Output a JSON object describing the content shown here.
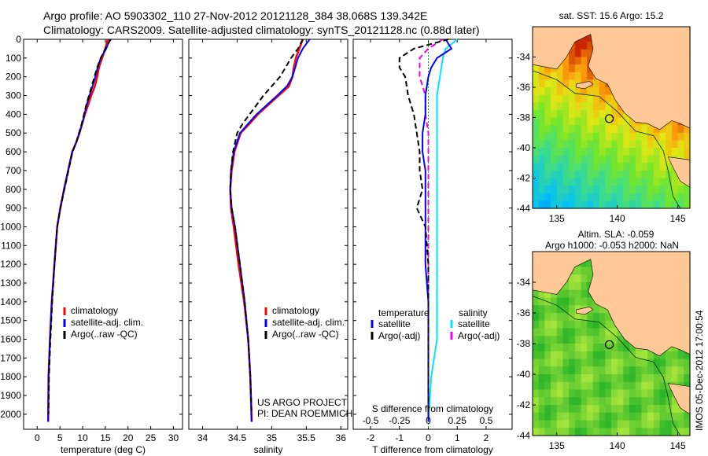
{
  "header": {
    "line1": "Argo profile: AO 5903302_110 27-Nov-2012 20121128_384 38.068S 139.342E",
    "line2": "Climatology: CARS2009. Satellite-adjusted climatology: synTS_20121128.nc (0.88d later)"
  },
  "colors": {
    "climatology": "#ff0000",
    "satellite": "#0000ff",
    "argo": "#000000",
    "sat_salinity": "#00e5ff",
    "argo_salinity": "#ee00ee",
    "land": "#ffc896",
    "sea_sla": "#3ec43e"
  },
  "chart_data": [
    {
      "type": "line",
      "name": "temperature-panel",
      "xlabel": "temperature (deg C)",
      "ylabel": "",
      "xlim": [
        -3,
        32
      ],
      "ylim": [
        2080,
        0
      ],
      "xticks": [
        0,
        5,
        10,
        15,
        20,
        25,
        30
      ],
      "yticks": [
        0,
        100,
        200,
        300,
        400,
        500,
        600,
        700,
        800,
        900,
        1000,
        1100,
        1200,
        1300,
        1400,
        1500,
        1600,
        1700,
        1800,
        1900,
        2000
      ],
      "legend": {
        "position": "lower-center",
        "items": [
          "climatology",
          "satellite-adj. clim.",
          "Argo(..raw -QC)"
        ]
      },
      "series": [
        {
          "name": "climatology",
          "x": [
            15.5,
            15.0,
            14.3,
            13.6,
            13.2,
            12.7,
            11.9,
            11.2,
            10.5,
            9.9,
            9.3,
            8.6,
            7.7,
            6.8,
            5.9,
            5.1,
            4.4,
            3.8,
            3.2,
            2.8,
            2.5,
            2.4
          ],
          "y": [
            0,
            50,
            100,
            150,
            200,
            250,
            300,
            350,
            400,
            450,
            500,
            550,
            600,
            700,
            800,
            900,
            1000,
            1200,
            1400,
            1600,
            1800,
            2040
          ]
        },
        {
          "name": "satellite-adj. clim.",
          "x": [
            16.0,
            15.2,
            14.0,
            13.3,
            12.8,
            12.2,
            11.5,
            10.9,
            10.4,
            9.9,
            9.3,
            8.6,
            7.7,
            6.8,
            5.9,
            5.1,
            4.4,
            3.8,
            3.2,
            2.8,
            2.5,
            2.4
          ],
          "y": [
            0,
            50,
            100,
            150,
            200,
            250,
            300,
            350,
            400,
            450,
            500,
            550,
            600,
            700,
            800,
            900,
            1000,
            1200,
            1400,
            1600,
            1800,
            2040
          ]
        },
        {
          "name": "Argo(..raw -QC)",
          "x": [
            16.2,
            15.0,
            14.0,
            13.2,
            12.6,
            12.0,
            11.4,
            10.8,
            10.3,
            9.8,
            9.2,
            8.6,
            7.8,
            6.9,
            6.0,
            5.1,
            4.4,
            3.8,
            3.3,
            2.9,
            2.6,
            2.5
          ],
          "y": [
            0,
            50,
            100,
            150,
            200,
            250,
            300,
            350,
            400,
            450,
            500,
            550,
            600,
            700,
            800,
            900,
            1000,
            1200,
            1400,
            1600,
            1800,
            2000
          ]
        }
      ]
    },
    {
      "type": "line",
      "name": "salinity-panel",
      "xlabel": "salinity",
      "xlim": [
        33.8,
        36.1
      ],
      "ylim": [
        2080,
        0
      ],
      "xticks": [
        34,
        34.5,
        35,
        35.5,
        36
      ],
      "legend": {
        "position": "lower-center",
        "items": [
          "climatology",
          "satellite-adj. clim.",
          "Argo(..raw -QC)"
        ]
      },
      "annotation": [
        "US ARGO PROJECT",
        "PI: DEAN ROEMMICH"
      ],
      "series": [
        {
          "name": "climatology",
          "x": [
            35.45,
            35.4,
            35.35,
            35.32,
            35.3,
            35.25,
            35.1,
            34.95,
            34.8,
            34.68,
            34.55,
            34.46,
            34.42,
            34.4,
            34.41,
            34.45,
            34.52,
            34.6,
            34.66,
            34.69,
            34.71
          ],
          "y": [
            0,
            50,
            100,
            150,
            200,
            250,
            300,
            350,
            400,
            450,
            500,
            600,
            700,
            800,
            900,
            1000,
            1200,
            1400,
            1600,
            1800,
            2040
          ]
        },
        {
          "name": "satellite-adj. clim.",
          "x": [
            35.55,
            35.45,
            35.38,
            35.34,
            35.3,
            35.22,
            35.08,
            34.93,
            34.78,
            34.66,
            34.54,
            34.45,
            34.41,
            34.4,
            34.42,
            34.47,
            34.54,
            34.61,
            34.66,
            34.69,
            34.71
          ],
          "y": [
            0,
            50,
            100,
            150,
            200,
            250,
            300,
            350,
            400,
            450,
            500,
            600,
            700,
            800,
            900,
            1000,
            1200,
            1400,
            1600,
            1800,
            2040
          ]
        },
        {
          "name": "Argo(..raw -QC)",
          "x": [
            35.45,
            35.38,
            35.28,
            35.2,
            35.12,
            35.0,
            34.88,
            34.78,
            34.68,
            34.58,
            34.5,
            34.44,
            34.41,
            34.4,
            34.42,
            34.47,
            34.54,
            34.61,
            34.66,
            34.69,
            34.71
          ],
          "y": [
            0,
            50,
            100,
            150,
            200,
            250,
            300,
            350,
            400,
            450,
            500,
            600,
            700,
            800,
            900,
            1000,
            1200,
            1400,
            1600,
            1800,
            2000
          ]
        }
      ]
    },
    {
      "type": "line",
      "name": "difference-panel",
      "xlabel": "T difference from climatology",
      "xlabel2": "S difference from climatology",
      "xlim": [
        -2.6,
        2.9
      ],
      "ylim": [
        2080,
        0
      ],
      "xticks": [
        -2,
        -1,
        0,
        1,
        2
      ],
      "xticks2": [
        "-0.5",
        "-0.25",
        "0",
        "0.25",
        "0.5"
      ],
      "xticks2_values": [
        -2,
        -1,
        0,
        1,
        2
      ],
      "legend": {
        "position": "lower",
        "temperature_title": "temperature",
        "salinity_title": "salinity",
        "items": [
          "satellite",
          "Argo(-adj)",
          "satellite",
          "Argo(-adj)"
        ]
      },
      "series": [
        {
          "name": "temperature satellite",
          "x": [
            0.6,
            0.8,
            0.3,
            0.1,
            0.0,
            -0.1,
            -0.1,
            -0.2,
            -0.2,
            -0.1,
            -0.1,
            -0.1,
            -0.1,
            -0.1,
            0.0,
            0.0,
            0.0,
            0.0,
            0.0
          ],
          "y": [
            0,
            50,
            100,
            150,
            200,
            300,
            400,
            500,
            600,
            700,
            800,
            900,
            1000,
            1200,
            1400,
            1600,
            1800,
            1900,
            2040
          ]
        },
        {
          "name": "temperature Argo(-adj)",
          "x": [
            0.7,
            -0.5,
            -1.0,
            -1.0,
            -0.8,
            -0.7,
            -0.5,
            -0.4,
            -0.3,
            -0.3,
            -0.2,
            -0.4,
            -0.1,
            0.0,
            0.0,
            0.0,
            0.0,
            0.0
          ],
          "y": [
            0,
            50,
            100,
            150,
            200,
            300,
            400,
            500,
            600,
            700,
            800,
            900,
            1000,
            1200,
            1400,
            1600,
            1800,
            2000
          ]
        },
        {
          "name": "salinity satellite",
          "x": [
            1.0,
            0.6,
            0.5,
            0.4,
            0.3,
            0.3,
            0.3,
            0.3,
            0.3,
            0.3,
            0.3,
            0.3,
            0.3,
            0.3,
            0.3,
            0.1,
            0.0
          ],
          "y": [
            0,
            50,
            100,
            200,
            300,
            400,
            500,
            600,
            700,
            800,
            900,
            1000,
            1200,
            1400,
            1600,
            1800,
            2040
          ]
        },
        {
          "name": "salinity Argo(-adj)",
          "x": [
            0.5,
            0.0,
            -0.3,
            -0.3,
            -0.1,
            -0.1,
            0.0,
            0.0,
            0.0,
            0.0,
            0.0,
            0.0,
            0.0,
            0.0,
            0.0,
            0.0
          ],
          "y": [
            0,
            50,
            100,
            200,
            300,
            400,
            500,
            600,
            700,
            800,
            900,
            1000,
            1200,
            1400,
            1600,
            2000
          ]
        }
      ]
    }
  ],
  "maps": {
    "sst": {
      "title": "sat. SST: 15.6 Argo: 15.2",
      "xticks": [
        "135",
        "140",
        "145"
      ],
      "yticks": [
        "-34",
        "-36",
        "-38",
        "-40",
        "-42",
        "-44"
      ],
      "argo_lon": 139.342,
      "argo_lat": -38.068
    },
    "sla": {
      "title_line1": "Altim. SLA: -0.059",
      "title_line2": "Argo h1000: -0.053 h2000: NaN",
      "xticks": [
        "135",
        "140",
        "145"
      ],
      "yticks": [
        "-34",
        "-36",
        "-38",
        "-40",
        "-42",
        "-44"
      ],
      "argo_lon": 139.342,
      "argo_lat": -38.068
    },
    "lon_range": [
      133,
      146
    ],
    "lat_range": [
      -44,
      -32
    ]
  },
  "footer_stamp": "IMOS 05-Dec-2012 17:00:54"
}
